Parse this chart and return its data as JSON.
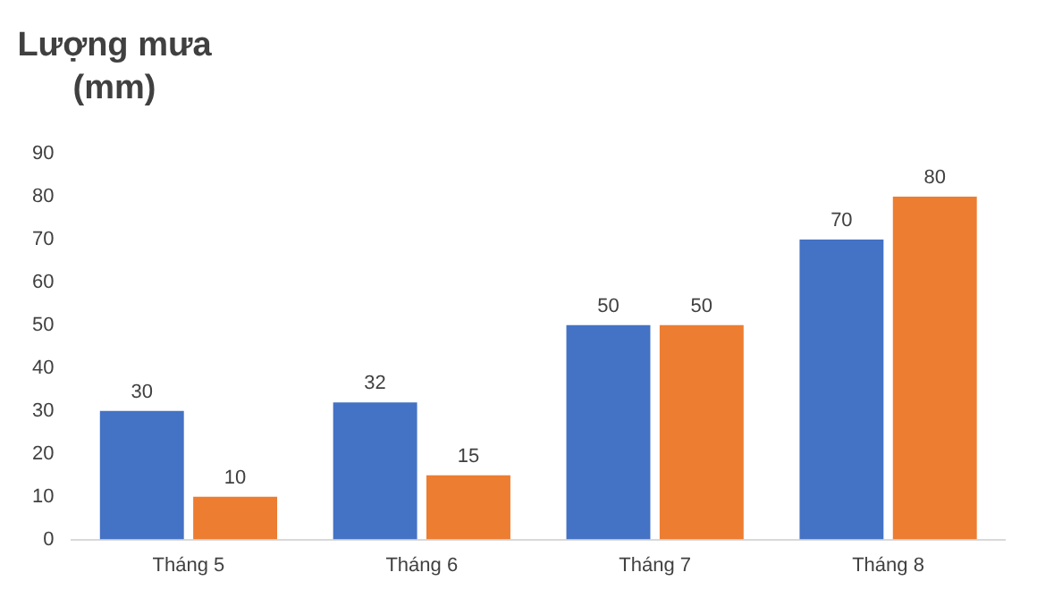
{
  "chart_data": {
    "type": "bar",
    "ylabel": "Lượng mưa (mm)",
    "categories": [
      "Tháng 5",
      "Tháng 6",
      "Tháng 7",
      "Tháng 8"
    ],
    "series": [
      {
        "color": "#4472c4",
        "values": [
          30,
          32,
          50,
          70
        ]
      },
      {
        "color": "#ed7d31",
        "values": [
          10,
          15,
          50,
          80
        ]
      }
    ],
    "ylim": [
      0,
      90
    ],
    "yticks": [
      0,
      10,
      20,
      30,
      40,
      50,
      60,
      70,
      80,
      90
    ],
    "grid": false,
    "legend": false,
    "data_labels": true
  }
}
